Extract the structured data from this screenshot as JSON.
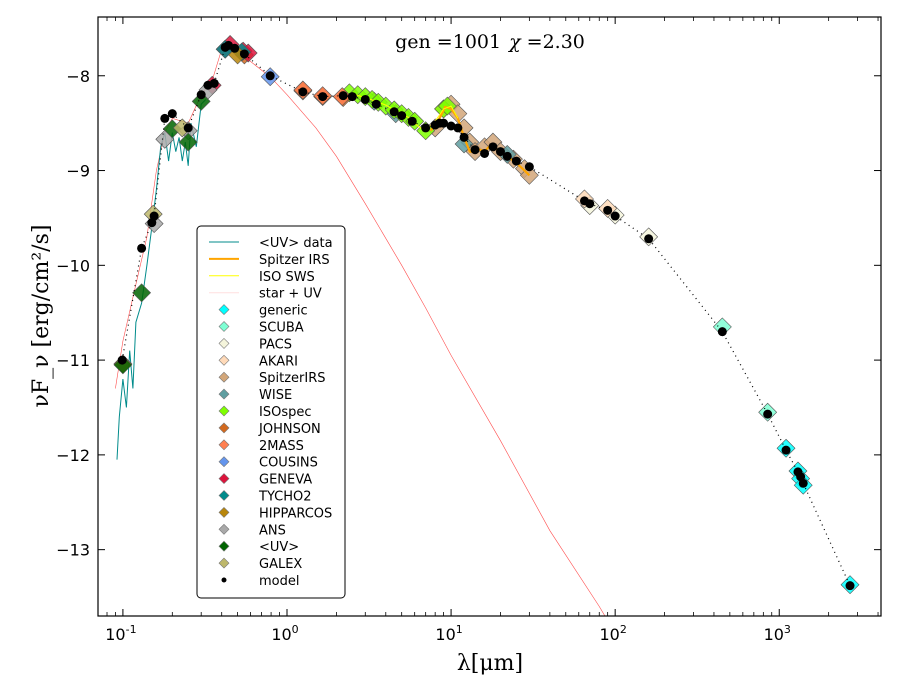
{
  "chart_data": {
    "type": "scatter",
    "title": "gen =1001  χ =2.30",
    "title_parts": {
      "gen_label": "gen",
      "gen_value": "1001",
      "chi_label": "χ",
      "chi_value": "2.30"
    },
    "xlabel": "λ[μm]",
    "ylabel": "νF_ν [erg/cm²/s]",
    "xscale": "log",
    "xlim": [
      0.0705,
      4170
    ],
    "ylim": [
      -13.7,
      -7.38
    ],
    "xticks": [
      {
        "value": 0.1,
        "base": "10",
        "exp": "-1"
      },
      {
        "value": 1,
        "base": "10",
        "exp": "0"
      },
      {
        "value": 10,
        "base": "10",
        "exp": "1"
      },
      {
        "value": 100,
        "base": "10",
        "exp": "2"
      },
      {
        "value": 1000,
        "base": "10",
        "exp": "3"
      }
    ],
    "yticks": [
      {
        "value": -8,
        "label": "−8"
      },
      {
        "value": -9,
        "label": "−9"
      },
      {
        "value": -10,
        "label": "−10"
      },
      {
        "value": -11,
        "label": "−11"
      },
      {
        "value": -12,
        "label": "−12"
      },
      {
        "value": -13,
        "label": "−13"
      }
    ],
    "grid": false,
    "legend_position": "lower-left",
    "legend": [
      {
        "label": "<UV> data",
        "kind": "line",
        "color": "#008B8B",
        "width": 1
      },
      {
        "label": "Spitzer IRS",
        "kind": "line",
        "color": "#FFA500",
        "width": 2
      },
      {
        "label": "ISO SWS",
        "kind": "line",
        "color": "#FFFF00",
        "width": 1
      },
      {
        "label": "star + UV",
        "kind": "line",
        "color": "#FFC0C0",
        "width": 1
      },
      {
        "label": "generic",
        "kind": "diamond",
        "color": "#00FFFF"
      },
      {
        "label": "SCUBA",
        "kind": "diamond",
        "color": "#7FFFD4"
      },
      {
        "label": "PACS",
        "kind": "diamond",
        "color": "#F5F5DC"
      },
      {
        "label": "AKARI",
        "kind": "diamond",
        "color": "#FFDAB9"
      },
      {
        "label": "SpitzerIRS",
        "kind": "diamond",
        "color": "#D2A679"
      },
      {
        "label": "WISE",
        "kind": "diamond",
        "color": "#5F9EA0"
      },
      {
        "label": "ISOspec",
        "kind": "diamond",
        "color": "#7FFF00"
      },
      {
        "label": "JOHNSON",
        "kind": "diamond",
        "color": "#D2691E"
      },
      {
        "label": "2MASS",
        "kind": "diamond",
        "color": "#FF7F50"
      },
      {
        "label": "COUSINS",
        "kind": "diamond",
        "color": "#6495ED"
      },
      {
        "label": "GENEVA",
        "kind": "diamond",
        "color": "#DC143C"
      },
      {
        "label": "TYCHO2",
        "kind": "diamond",
        "color": "#008B8B"
      },
      {
        "label": "HIPPARCOS",
        "kind": "diamond",
        "color": "#B8860B"
      },
      {
        "label": "ANS",
        "kind": "diamond",
        "color": "#A9A9A9"
      },
      {
        "label": "<UV>",
        "kind": "diamond",
        "color": "#006400"
      },
      {
        "label": "GALEX",
        "kind": "diamond",
        "color": "#BDB76B"
      },
      {
        "label": "model",
        "kind": "dot",
        "color": "#000000"
      }
    ],
    "series": [
      {
        "name": "model",
        "kind": "dotted-line-with-dots",
        "color": "#000000",
        "x": [
          0.099,
          0.13,
          0.15,
          0.155,
          0.18,
          0.2,
          0.25,
          0.3,
          0.33,
          0.36,
          0.42,
          0.44,
          0.48,
          0.55,
          0.79,
          1.25,
          1.65,
          2.2,
          2.5,
          3.0,
          3.5,
          4.5,
          5.0,
          5.8,
          7.0,
          8.0,
          8.5,
          9.0,
          10.0,
          11.0,
          12.0,
          14.0,
          16.0,
          18.0,
          20.0,
          22.0,
          25.0,
          30.0,
          65.0,
          70.0,
          90.0,
          100.0,
          160.0,
          450.0,
          850.0,
          1100.0,
          1300.0,
          1350.0,
          1400.0,
          2700.0
        ],
        "y": [
          -11.0,
          -9.82,
          -9.55,
          -9.48,
          -8.45,
          -8.4,
          -8.55,
          -8.2,
          -8.1,
          -8.08,
          -7.7,
          -7.68,
          -7.71,
          -7.77,
          -8.0,
          -8.17,
          -8.22,
          -8.21,
          -8.22,
          -8.25,
          -8.3,
          -8.38,
          -8.42,
          -8.48,
          -8.55,
          -8.52,
          -8.5,
          -8.5,
          -8.53,
          -8.55,
          -8.65,
          -8.78,
          -8.82,
          -8.75,
          -8.8,
          -8.85,
          -8.9,
          -8.96,
          -9.32,
          -9.35,
          -9.42,
          -9.48,
          -9.72,
          -10.7,
          -11.57,
          -11.95,
          -12.18,
          -12.23,
          -12.3,
          -13.38
        ]
      },
      {
        "name": "generic",
        "kind": "diamond",
        "color": "#00FFFF",
        "x": [
          1100.0,
          1300.0,
          1350.0,
          1400.0,
          2700.0
        ],
        "y": [
          -11.93,
          -12.17,
          -12.25,
          -12.32,
          -13.37
        ]
      },
      {
        "name": "SCUBA",
        "kind": "diamond",
        "color": "#7FFFD4",
        "x": [
          450.0,
          850.0
        ],
        "y": [
          -10.65,
          -11.55
        ]
      },
      {
        "name": "PACS",
        "kind": "diamond",
        "color": "#F5F5DC",
        "x": [
          70.0,
          100.0,
          160.0
        ],
        "y": [
          -9.37,
          -9.47,
          -9.7
        ]
      },
      {
        "name": "AKARI",
        "kind": "diamond",
        "color": "#FFDAB9",
        "x": [
          65.0,
          90.0
        ],
        "y": [
          -9.3,
          -9.4
        ]
      },
      {
        "name": "SpitzerIRS",
        "kind": "diamond",
        "color": "#D2A679",
        "x": [
          8.0,
          9.0,
          10.0,
          11.0,
          12.0,
          13.0,
          14.0,
          16.0,
          18.0,
          20.0,
          24.0,
          28.0,
          30.0
        ],
        "y": [
          -8.55,
          -8.35,
          -8.3,
          -8.4,
          -8.55,
          -8.7,
          -8.8,
          -8.75,
          -8.7,
          -8.8,
          -8.88,
          -8.98,
          -9.05
        ]
      },
      {
        "name": "WISE",
        "kind": "diamond",
        "color": "#5F9EA0",
        "x": [
          3.4,
          4.6,
          12.0,
          22.0
        ],
        "y": [
          -8.27,
          -8.4,
          -8.72,
          -8.83
        ]
      },
      {
        "name": "ISOspec",
        "kind": "diamond",
        "color": "#7FFF00",
        "x": [
          2.4,
          2.7,
          3.0,
          3.3,
          3.6,
          4.0,
          4.5,
          5.0,
          5.5,
          6.0,
          7.0,
          9.0,
          9.5
        ],
        "y": [
          -8.18,
          -8.2,
          -8.22,
          -8.25,
          -8.28,
          -8.32,
          -8.36,
          -8.4,
          -8.44,
          -8.48,
          -8.58,
          -8.35,
          -8.32
        ]
      },
      {
        "name": "JOHNSON",
        "kind": "diamond",
        "color": "#D2691E",
        "x": [
          0.1,
          0.55,
          1.25,
          1.65,
          2.2
        ],
        "y": [
          -11.04,
          -7.78,
          -8.16,
          -8.22,
          -8.23
        ]
      },
      {
        "name": "2MASS",
        "kind": "diamond",
        "color": "#FF7F50",
        "x": [
          1.25,
          1.65,
          2.17
        ],
        "y": [
          -8.15,
          -8.21,
          -8.22
        ]
      },
      {
        "name": "COUSINS",
        "kind": "diamond",
        "color": "#6495ED",
        "x": [
          0.79
        ],
        "y": [
          -8.01
        ]
      },
      {
        "name": "GENEVA",
        "kind": "diamond",
        "color": "#DC143C",
        "x": [
          0.35,
          0.42,
          0.45,
          0.54,
          0.58
        ],
        "y": [
          -8.1,
          -7.72,
          -7.67,
          -7.74,
          -7.76
        ]
      },
      {
        "name": "TYCHO2",
        "kind": "diamond",
        "color": "#008B8B",
        "x": [
          0.42,
          0.53
        ],
        "y": [
          -7.72,
          -7.75
        ]
      },
      {
        "name": "HIPPARCOS",
        "kind": "diamond",
        "color": "#B8860B",
        "x": [
          0.5
        ],
        "y": [
          -7.78
        ]
      },
      {
        "name": "ANS",
        "kind": "diamond",
        "color": "#A9A9A9",
        "x": [
          0.155,
          0.18,
          0.25,
          0.33
        ],
        "y": [
          -9.56,
          -8.67,
          -8.58,
          -8.15
        ]
      },
      {
        "name": "<UV>",
        "kind": "diamond",
        "color": "#006400",
        "x": [
          0.1,
          0.13,
          0.2,
          0.25,
          0.3
        ],
        "y": [
          -11.05,
          -10.29,
          -8.56,
          -8.7,
          -8.27
        ]
      },
      {
        "name": "GALEX",
        "kind": "diamond",
        "color": "#BDB76B",
        "x": [
          0.153,
          0.23
        ],
        "y": [
          -9.46,
          -8.55
        ]
      },
      {
        "name": "Spitzer IRS",
        "kind": "line",
        "color": "#FFA500",
        "x": [
          7.5,
          8.5,
          9.2,
          10.0,
          11.0,
          12.0,
          13.0,
          14.0,
          15.0,
          16.0,
          17.0,
          18.0,
          19.0,
          20.0,
          22.0,
          25.0,
          28.0,
          30.0
        ],
        "y": [
          -8.58,
          -8.45,
          -8.33,
          -8.35,
          -8.45,
          -8.65,
          -8.8,
          -8.8,
          -8.78,
          -8.8,
          -8.75,
          -8.72,
          -8.78,
          -8.8,
          -8.85,
          -8.92,
          -9.0,
          -9.05
        ]
      },
      {
        "name": "ISO SWS",
        "kind": "line",
        "color": "#FFFF00",
        "x": [
          2.5,
          3.0,
          3.5,
          4.0,
          4.5,
          5.0,
          5.5,
          6.0,
          6.5,
          7.0,
          8.0,
          9.0,
          10.0,
          11.0
        ],
        "y": [
          -8.19,
          -8.23,
          -8.27,
          -8.31,
          -8.36,
          -8.4,
          -8.44,
          -8.5,
          -8.55,
          -8.58,
          -8.48,
          -8.35,
          -8.32,
          -8.45
        ]
      },
      {
        "name": "star + UV",
        "kind": "line",
        "color": "#FF0000",
        "x": [
          0.09,
          0.1,
          0.12,
          0.14,
          0.16,
          0.18,
          0.2,
          0.25,
          0.3,
          0.35,
          0.4,
          0.45,
          0.5,
          0.6,
          0.8,
          1.0,
          1.5,
          2.0,
          3.0,
          5.0,
          7.0,
          10.0,
          20.0,
          40.0,
          80.0,
          90.0
        ],
        "y": [
          -11.3,
          -10.8,
          -10.2,
          -9.7,
          -9.0,
          -8.6,
          -8.45,
          -8.5,
          -8.2,
          -8.05,
          -7.72,
          -7.7,
          -7.75,
          -7.85,
          -8.02,
          -8.2,
          -8.55,
          -8.85,
          -9.35,
          -10.0,
          -10.45,
          -10.95,
          -11.85,
          -12.8,
          -13.6,
          -13.75
        ]
      },
      {
        "name": "<UV> data",
        "kind": "line",
        "color": "#008B8B",
        "x": [
          0.092,
          0.095,
          0.1,
          0.105,
          0.11,
          0.115,
          0.12,
          0.13,
          0.14,
          0.15,
          0.16,
          0.17,
          0.18,
          0.19,
          0.2,
          0.21,
          0.22,
          0.23,
          0.24,
          0.25,
          0.26,
          0.28,
          0.3,
          0.32
        ],
        "y": [
          -12.05,
          -11.6,
          -11.2,
          -11.5,
          -10.9,
          -11.3,
          -10.6,
          -10.4,
          -10.0,
          -9.6,
          -9.2,
          -8.75,
          -8.6,
          -8.9,
          -8.6,
          -8.8,
          -8.65,
          -8.9,
          -8.7,
          -8.95,
          -8.5,
          -8.75,
          -8.3,
          -8.25
        ]
      }
    ]
  }
}
